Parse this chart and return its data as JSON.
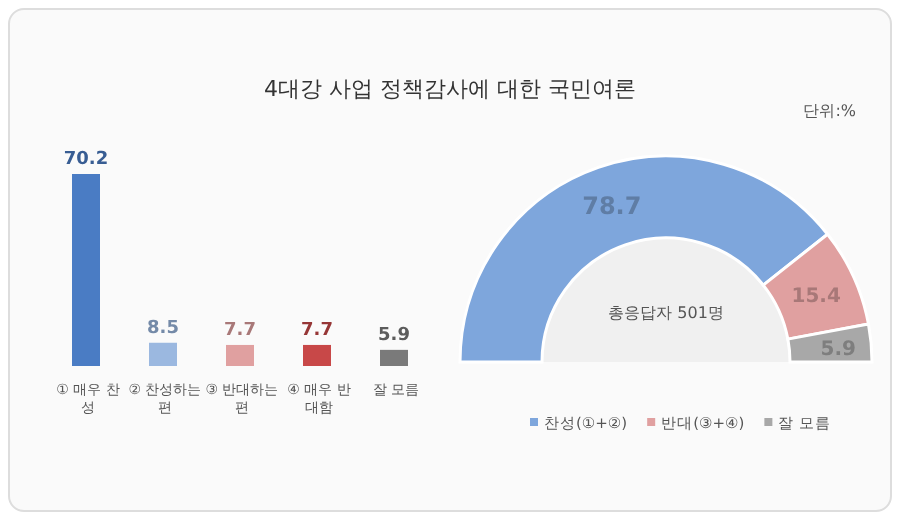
{
  "chart_data": [
    {
      "type": "bar",
      "title": "4대강 사업 정책감사에 대한 국민여론",
      "categories": [
        "① 매우 찬성",
        "② 찬성하는 편",
        "③ 반대하는 편",
        "④ 매우 반대함",
        "잘 모름"
      ],
      "values": [
        70.2,
        8.5,
        7.7,
        7.7,
        5.9
      ],
      "colors": [
        "#4a7cc4",
        "#9bb8e0",
        "#e0a0a0",
        "#c84848",
        "#7a7a7a"
      ],
      "data_labels": true
    },
    {
      "type": "donut",
      "categories": [
        "찬성(①+②)",
        "반대(③+④)",
        "잘 모름"
      ],
      "values": [
        78.7,
        15.4,
        5.9
      ],
      "colors": [
        "#7ea6dc",
        "#e0a0a0",
        "#a8a8a8"
      ],
      "data_labels": true,
      "legend": "bottom",
      "annotations": [
        "단위:%",
        "총응답자 501명"
      ]
    }
  ]
}
